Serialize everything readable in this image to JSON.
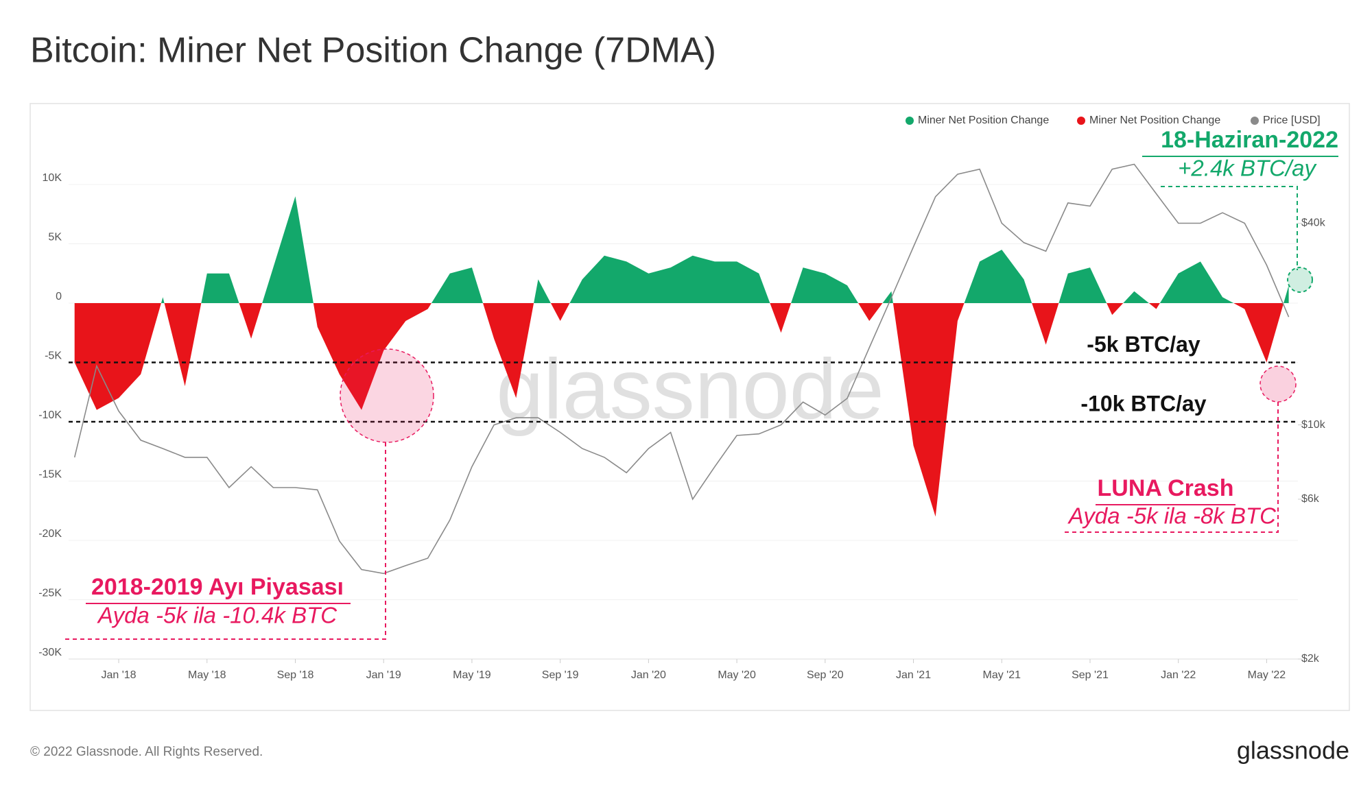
{
  "chart_data": {
    "type": "area",
    "title": "Bitcoin: Miner Net Position Change (7DMA)",
    "x": [
      "2017-11",
      "2017-12",
      "2018-01",
      "2018-02",
      "2018-03",
      "2018-04",
      "2018-05",
      "2018-06",
      "2018-07",
      "2018-08",
      "2018-09",
      "2018-10",
      "2018-11",
      "2018-12",
      "2019-01",
      "2019-02",
      "2019-03",
      "2019-04",
      "2019-05",
      "2019-06",
      "2019-07",
      "2019-08",
      "2019-09",
      "2019-10",
      "2019-11",
      "2019-12",
      "2020-01",
      "2020-02",
      "2020-03",
      "2020-04",
      "2020-05",
      "2020-06",
      "2020-07",
      "2020-08",
      "2020-09",
      "2020-10",
      "2020-11",
      "2020-12",
      "2021-01",
      "2021-02",
      "2021-03",
      "2021-04",
      "2021-05",
      "2021-06",
      "2021-07",
      "2021-08",
      "2021-09",
      "2021-10",
      "2021-11",
      "2021-12",
      "2022-01",
      "2022-02",
      "2022-03",
      "2022-04",
      "2022-05",
      "2022-06"
    ],
    "series": [
      {
        "name": "Miner Net Position Change",
        "color": "#13a86b",
        "negative_name": "Miner Net Position Change",
        "negative_color": "#e8141a",
        "values": [
          -5000,
          -9000,
          -8000,
          -6000,
          500,
          -7000,
          2500,
          2500,
          -3000,
          3000,
          9000,
          -2000,
          -6000,
          -9000,
          -4000,
          -1500,
          -500,
          2500,
          3000,
          -3000,
          -8000,
          2000,
          -1500,
          2000,
          4000,
          3500,
          2500,
          3000,
          4000,
          3500,
          3500,
          2500,
          -2500,
          3000,
          2500,
          1500,
          -1500,
          1000,
          -12000,
          -18000,
          -1500,
          3500,
          4500,
          2000,
          -3500,
          2500,
          3000,
          -1000,
          1000,
          -500,
          2500,
          3500,
          500,
          -500,
          -5000,
          1500
        ]
      },
      {
        "name": "Price [USD]",
        "color": "#8a8a8a",
        "axis": "y2",
        "values": [
          8000,
          15000,
          11000,
          9000,
          8500,
          8000,
          8000,
          6500,
          7500,
          6500,
          6500,
          6400,
          4500,
          3700,
          3600,
          3800,
          4000,
          5200,
          7500,
          10000,
          10500,
          10500,
          9500,
          8500,
          8000,
          7200,
          8500,
          9500,
          6000,
          7500,
          9300,
          9400,
          10000,
          11700,
          10700,
          12000,
          17000,
          24000,
          34000,
          48000,
          56000,
          58000,
          40000,
          35000,
          33000,
          46000,
          45000,
          58000,
          60000,
          49000,
          40000,
          40000,
          43000,
          40000,
          30000,
          21000
        ]
      }
    ],
    "xlim": [
      "2017-10",
      "2022-07"
    ],
    "xticks": [
      {
        "value": "2018-01",
        "label": "Jan '18"
      },
      {
        "value": "2018-05",
        "label": "May '18"
      },
      {
        "value": "2018-09",
        "label": "Sep '18"
      },
      {
        "value": "2019-01",
        "label": "Jan '19"
      },
      {
        "value": "2019-05",
        "label": "May '19"
      },
      {
        "value": "2019-09",
        "label": "Sep '19"
      },
      {
        "value": "2020-01",
        "label": "Jan '20"
      },
      {
        "value": "2020-05",
        "label": "May '20"
      },
      {
        "value": "2020-09",
        "label": "Sep '20"
      },
      {
        "value": "2021-01",
        "label": "Jan '21"
      },
      {
        "value": "2021-05",
        "label": "May '21"
      },
      {
        "value": "2021-09",
        "label": "Sep '21"
      },
      {
        "value": "2022-01",
        "label": "Jan '22"
      },
      {
        "value": "2022-05",
        "label": "May '22"
      }
    ],
    "ylim": [
      -30000,
      15000
    ],
    "yticks": [
      {
        "value": 10000,
        "label": "10K"
      },
      {
        "value": 5000,
        "label": "5K"
      },
      0,
      {
        "value": -5000,
        "label": "-5K"
      },
      {
        "value": -10000,
        "label": "-10K"
      },
      {
        "value": -15000,
        "label": "-15K"
      },
      {
        "value": -20000,
        "label": "-20K"
      },
      {
        "value": -25000,
        "label": "-25K"
      },
      {
        "value": -30000,
        "label": "-30K"
      }
    ],
    "y2lim": [
      2000,
      78500
    ],
    "y2scale": "log",
    "y2ticks": [
      {
        "value": 2000,
        "label": "$2k"
      },
      {
        "value": 6000,
        "label": "$6k"
      },
      {
        "value": 10000,
        "label": "$10k"
      },
      {
        "value": 40000,
        "label": "$40k"
      }
    ],
    "grid": true,
    "legend": "top-right",
    "reference_lines": [
      {
        "value": -5000,
        "label": "-5k BTC/ay"
      },
      {
        "value": -10000,
        "label": "-10k BTC/ay"
      }
    ],
    "annotations": [
      {
        "title": "18-Haziran-2022",
        "text": "+2.4k BTC/ay",
        "color": "#13a86b"
      },
      {
        "title": "LUNA Crash",
        "text": "Ayda -5k ila -8k BTC",
        "color": "#e8195f"
      },
      {
        "title": "2018-2019 Ayı Piyasası",
        "text": "Ayda -5k ila -10.4k BTC",
        "color": "#e8195f"
      }
    ],
    "watermark": "glassnode",
    "footer": {
      "copyright": "© 2022 Glassnode. All Rights Reserved.",
      "logo": "glassnode"
    }
  }
}
